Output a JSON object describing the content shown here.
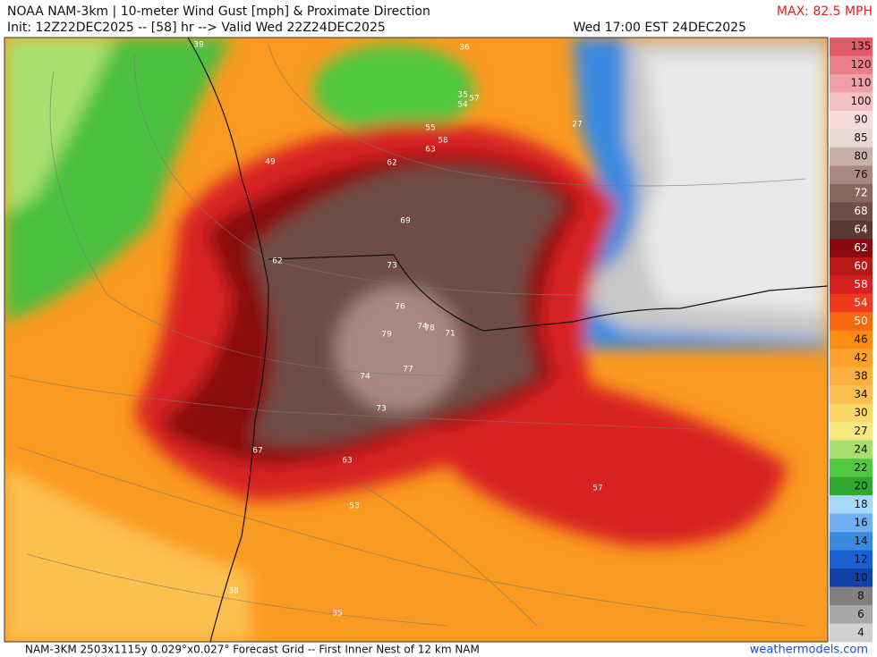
{
  "header": {
    "title": "NOAA NAM-3km | 10-meter Wind Gust [mph] & Proximate Direction",
    "init": "Init: 12Z22DEC2025 -- [58] hr --> Valid Wed 22Z24DEC2025",
    "max": "MAX: 82.5 MPH",
    "valid": "Wed 17:00 EST 24DEC2025"
  },
  "colorbar": {
    "labels": [
      "135",
      "120",
      "110",
      "100",
      "90",
      "85",
      "80",
      "76",
      "72",
      "68",
      "64",
      "62",
      "60",
      "58",
      "54",
      "50",
      "46",
      "42",
      "38",
      "34",
      "30",
      "27",
      "24",
      "22",
      "20",
      "18",
      "16",
      "14",
      "12",
      "10",
      "8",
      "6",
      "4"
    ],
    "colors": [
      "#e05a6a",
      "#e8808a",
      "#f0a0a8",
      "#f4c0c4",
      "#f8dcdc",
      "#e8d8d4",
      "#c8b0a8",
      "#a88880",
      "#8a6860",
      "#6e4e46",
      "#5a3a32",
      "#8a0a10",
      "#b81818",
      "#d82020",
      "#f03a20",
      "#f86a10",
      "#fb8c10",
      "#fca030",
      "#fdb040",
      "#fdc050",
      "#fcd868",
      "#f8e880",
      "#a8e070",
      "#50c840",
      "#30a830",
      "#a8d8f8",
      "#70b0f0",
      "#3a8ae0",
      "#1a60d0",
      "#1040a8",
      "#808080",
      "#a8a8a8",
      "#d0d0d0"
    ]
  },
  "map_labels": [
    "39",
    "36",
    "35",
    "57",
    "54",
    "27",
    "55",
    "58",
    "63",
    "49",
    "62",
    "69",
    "62",
    "73",
    "76",
    "79",
    "74",
    "78",
    "71",
    "74",
    "77",
    "73",
    "67",
    "63",
    "57",
    "53",
    "38",
    "35"
  ],
  "footer": {
    "grid": "NAM-3KM 2503x1115y 0.029°x0.027° Forecast Grid -- First Inner Nest of 12 km NAM",
    "site": "weathermodels.com"
  }
}
